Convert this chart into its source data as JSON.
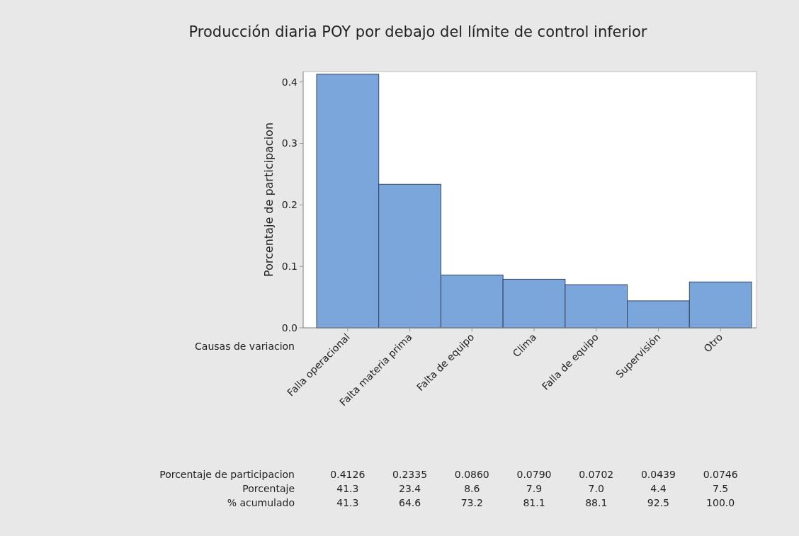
{
  "chart_data": {
    "type": "bar",
    "title": "Producción diaria POY por debajo del límite de control inferior",
    "xlabel": "Causas de variacion",
    "ylabel": "Porcentaje de participacion",
    "categories": [
      "Falla operacional",
      "Falta materia prima",
      "Falta de equipo",
      "Clima",
      "Falla de equipo",
      "Supervisión",
      "Otro"
    ],
    "series": [
      {
        "name": "Porcentaje de participacion",
        "color": "#7aa6dc",
        "values": [
          0.4126,
          0.2335,
          0.086,
          0.079,
          0.0702,
          0.0439,
          0.0746
        ],
        "value_labels": [
          "0.4126",
          "0.2335",
          "0.0860",
          "0.0790",
          "0.0702",
          "0.0439",
          "0.0746"
        ]
      }
    ],
    "annotations": [
      "Porcentaje",
      "41.3",
      "23.4",
      "8.6",
      "7.9",
      "7.0",
      "4.4",
      "7.5",
      "% acumulado",
      "41.3",
      "64.6",
      "73.2",
      "81.1",
      "88.1",
      "92.5",
      "100.0"
    ],
    "ylim": [
      0,
      0.417
    ],
    "yticks": [
      {
        "value": 0,
        "label": "0.0"
      },
      {
        "value": 0.1,
        "label": "0.1"
      },
      {
        "value": 0.2,
        "label": "0.2"
      },
      {
        "value": 0.3,
        "label": "0.3"
      },
      {
        "value": 0.4,
        "label": "0.4"
      }
    ],
    "grid": false,
    "legend": false
  }
}
